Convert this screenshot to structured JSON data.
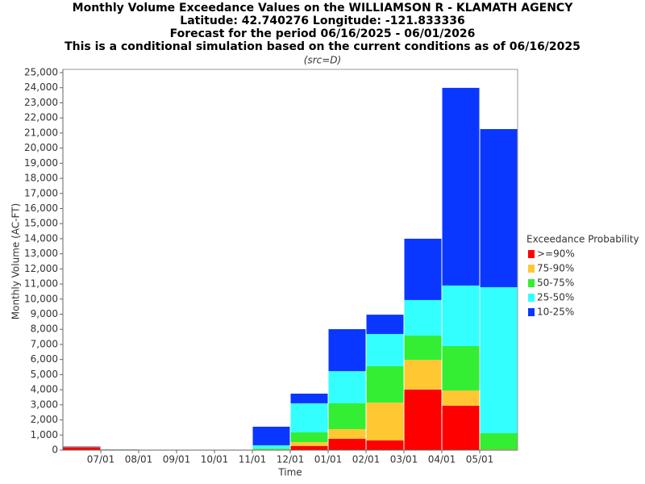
{
  "chart_data": {
    "type": "stacked_bar",
    "title": "Monthly Volume Exceedance Values on the WILLIAMSON R - KLAMATH AGENCY",
    "subtitle_lines": [
      "Latitude: 42.740276 Longitude: -121.833336",
      "Forecast for the period 06/16/2025 - 06/01/2026",
      "This is a conditional simulation based on the current conditions as of 06/16/2025"
    ],
    "source_note": "(src=D)",
    "y_label": "Monthly Volume (AC-FT)",
    "x_label": "Time",
    "legend_title": "Exceedance Probability",
    "legend_position": "right",
    "categories": [
      null,
      null,
      null,
      null,
      null,
      null,
      null,
      null,
      null,
      null,
      null,
      null
    ],
    "x_tick_labels": [
      "07/01",
      "08/01",
      "09/01",
      "10/01",
      "11/01",
      "12/01",
      "01/01",
      "02/01",
      "03/01",
      "04/01",
      "05/01"
    ],
    "series": [
      {
        "name": ">=90%",
        "color": "#ff0000",
        "values": [
          200,
          30,
          0,
          0,
          0,
          20,
          270,
          750,
          640,
          4010,
          2940,
          30
        ]
      },
      {
        "name": "75-90%",
        "color": "#ffc833",
        "values": [
          10,
          10,
          0,
          0,
          0,
          20,
          260,
          640,
          2510,
          1970,
          1010,
          20
        ]
      },
      {
        "name": "50-75%",
        "color": "#33ee33",
        "values": [
          10,
          5,
          0,
          0,
          0,
          60,
          650,
          1710,
          2410,
          1610,
          2940,
          1070
        ]
      },
      {
        "name": "25-50%",
        "color": "#33ffff",
        "values": [
          10,
          5,
          0,
          0,
          0,
          220,
          1920,
          2130,
          2130,
          2350,
          4010,
          9670
        ]
      },
      {
        "name": "10-25%",
        "color": "#0a37ff",
        "values": [
          20,
          5,
          0,
          0,
          0,
          1230,
          640,
          2780,
          1280,
          4060,
          13090,
          10470
        ]
      }
    ],
    "ylim": [
      0,
      25000
    ],
    "yticks": [
      0,
      {
        "value": 1000,
        "label": "1,000"
      },
      {
        "value": 2000,
        "label": "2,000"
      },
      {
        "value": 3000,
        "label": "3,000"
      },
      {
        "value": 4000,
        "label": "4,000"
      },
      {
        "value": 5000,
        "label": "5,000"
      },
      {
        "value": 6000,
        "label": "6,000"
      },
      {
        "value": 7000,
        "label": "7,000"
      },
      {
        "value": 8000,
        "label": "8,000"
      },
      {
        "value": 9000,
        "label": "9,000"
      },
      {
        "value": 10000,
        "label": "10,000"
      },
      {
        "value": 11000,
        "label": "11,000"
      },
      {
        "value": 12000,
        "label": "12,000"
      },
      {
        "value": 13000,
        "label": "13,000"
      },
      {
        "value": 14000,
        "label": "14,000"
      },
      {
        "value": 15000,
        "label": "15,000"
      },
      {
        "value": 16000,
        "label": "16,000"
      },
      {
        "value": 17000,
        "label": "17,000"
      },
      {
        "value": 18000,
        "label": "18,000"
      },
      {
        "value": 19000,
        "label": "19,000"
      },
      {
        "value": 20000,
        "label": "20,000"
      },
      {
        "value": 21000,
        "label": "21,000"
      },
      {
        "value": 22000,
        "label": "22,000"
      },
      {
        "value": 23000,
        "label": "23,000"
      },
      {
        "value": 24000,
        "label": "24,000"
      },
      {
        "value": 25000,
        "label": "25,000"
      }
    ],
    "grid": false
  }
}
